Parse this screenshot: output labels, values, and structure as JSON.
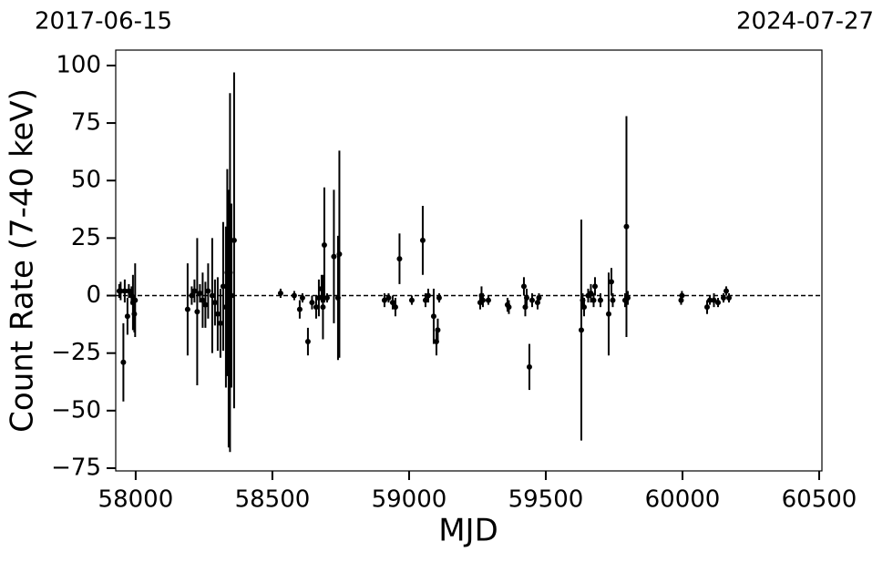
{
  "chart_data": {
    "type": "errorbar-scatter",
    "xlabel": "MJD",
    "ylabel": "Count Rate (7-40 keV)",
    "annotations": [
      "2017-06-15",
      "2024-07-27"
    ],
    "color": "#000000",
    "hline": 0,
    "xlim": [
      57927,
      60510
    ],
    "ylim": [
      -76.2,
      106.7
    ],
    "xticks": [
      58000,
      58500,
      59000,
      59500,
      60000,
      60500
    ],
    "yticks": [
      {
        "value": -75,
        "label": "−75"
      },
      {
        "value": -50,
        "label": "−50"
      },
      {
        "value": -25,
        "label": "−25"
      },
      0,
      25,
      50,
      75,
      100
    ],
    "x": [
      57940,
      57945,
      57955,
      57960,
      57970,
      57975,
      57985,
      57990,
      57995,
      57998,
      58190,
      58205,
      58215,
      58225,
      58235,
      58245,
      58255,
      58265,
      58280,
      58290,
      58300,
      58310,
      58320,
      58330,
      58335,
      58340,
      58345,
      58350,
      58360,
      58530,
      58580,
      58600,
      58610,
      58630,
      58645,
      58660,
      58670,
      58680,
      58685,
      58690,
      58700,
      58725,
      58740,
      58745,
      58910,
      58925,
      58940,
      58950,
      58965,
      59010,
      59050,
      59060,
      59070,
      59090,
      59100,
      59105,
      59110,
      59260,
      59265,
      59270,
      59290,
      59360,
      59365,
      59420,
      59425,
      59430,
      59440,
      59450,
      59470,
      59475,
      59630,
      59635,
      59640,
      59655,
      59665,
      59675,
      59680,
      59700,
      59730,
      59740,
      59745,
      59790,
      59795,
      59800,
      59995,
      59998,
      60090,
      60100,
      60115,
      60130,
      60150,
      60160,
      60170
    ],
    "values": [
      2,
      2,
      -29,
      2,
      -9,
      2,
      0,
      -3,
      -8,
      -2,
      -6,
      0,
      2,
      -7,
      1,
      -2,
      -4,
      2,
      0,
      -3,
      -8,
      -12,
      4,
      -5,
      10,
      -10,
      10,
      0,
      24,
      1,
      0,
      -6,
      -1,
      -20,
      -3,
      -5,
      -1,
      3,
      -5,
      22,
      -1,
      17,
      -1,
      18,
      -2,
      -1,
      -3,
      -5,
      16,
      -2,
      24,
      -2,
      0,
      -9,
      -20,
      -15,
      -1,
      -3,
      0,
      -2,
      -2,
      -4,
      -5,
      4,
      -5,
      -1,
      -31,
      -2,
      -3,
      -1,
      -15,
      -2,
      -5,
      0,
      1,
      -2,
      4,
      -2,
      -8,
      6,
      -2,
      -2,
      30,
      -1,
      -2,
      0,
      -5,
      -2,
      -2,
      -3,
      -1,
      2,
      -1
    ],
    "errors": [
      3,
      4,
      17,
      5,
      8,
      3,
      4,
      12,
      8,
      16,
      20,
      4,
      5,
      32,
      4,
      12,
      10,
      12,
      25,
      10,
      16,
      15,
      28,
      35,
      45,
      56,
      78,
      40,
      73,
      2,
      2,
      4,
      2,
      6,
      3,
      5,
      8,
      6,
      14,
      25,
      2,
      29,
      27,
      45,
      3,
      2,
      3,
      4,
      11,
      2,
      15,
      3,
      3,
      12,
      6,
      5,
      2,
      3,
      4,
      3,
      2,
      3,
      3,
      4,
      4,
      4,
      10,
      3,
      3,
      2,
      48,
      3,
      4,
      3,
      4,
      3,
      4,
      3,
      18,
      6,
      3,
      3,
      48,
      3,
      2,
      2,
      3,
      2,
      3,
      2,
      2,
      2,
      2
    ]
  }
}
